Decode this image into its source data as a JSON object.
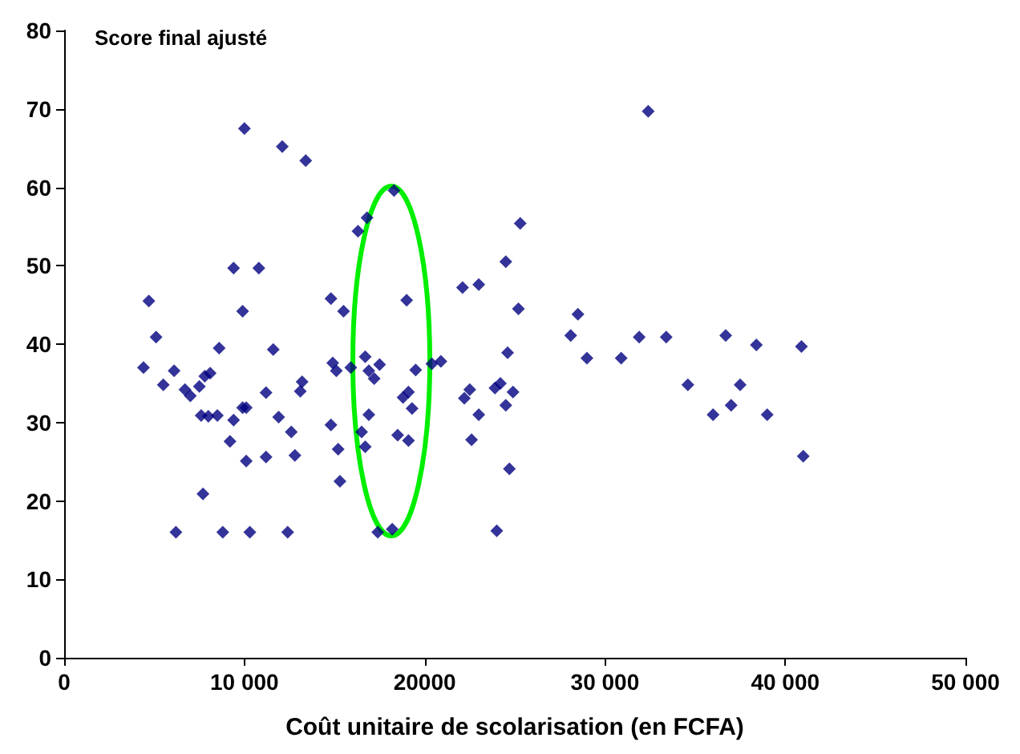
{
  "chart_data": {
    "type": "scatter",
    "xlabel": "Coût unitaire de scolarisation (en FCFA)",
    "ylabel": "Score final ajusté",
    "x": [
      10000,
      12100,
      13400,
      9400,
      10800,
      4700,
      9900,
      5100,
      8600,
      11600,
      4400,
      6100,
      5500,
      6700,
      7000,
      7800,
      8100,
      7500,
      13200,
      13100,
      11200,
      7600,
      8000,
      8500,
      9400,
      9900,
      10100,
      11900,
      12600,
      9200,
      10100,
      11200,
      12800,
      7700,
      6200,
      8800,
      10300,
      12400,
      18300,
      16800,
      16300,
      25300,
      24500,
      22100,
      23000,
      14800,
      15500,
      19000,
      25200,
      24600,
      16700,
      14900,
      15100,
      15900,
      17500,
      16900,
      17200,
      19500,
      20400,
      20900,
      19100,
      18800,
      19300,
      22500,
      22200,
      23900,
      24200,
      24900,
      24500,
      23000,
      16900,
      14800,
      16500,
      16700,
      15200,
      18500,
      19100,
      22600,
      15300,
      24700,
      17400,
      18200,
      24000,
      32400,
      28500,
      28100,
      29000,
      30900,
      31900,
      33400,
      36700,
      38400,
      40900,
      34600,
      37500,
      37000,
      36000,
      39000,
      41000
    ],
    "values": [
      67.5,
      65.2,
      63.4,
      49.7,
      49.7,
      45.5,
      44.2,
      40.9,
      39.5,
      39.3,
      37.0,
      36.6,
      34.8,
      34.2,
      33.4,
      35.9,
      36.3,
      34.6,
      35.2,
      34.0,
      33.8,
      30.9,
      30.8,
      30.9,
      30.3,
      31.9,
      31.9,
      30.7,
      28.8,
      27.6,
      25.1,
      25.6,
      25.8,
      20.9,
      16.0,
      16.0,
      16.0,
      16.0,
      59.6,
      56.1,
      54.4,
      55.4,
      50.5,
      47.2,
      47.6,
      45.8,
      44.2,
      45.6,
      44.5,
      38.9,
      38.4,
      37.6,
      36.6,
      37.0,
      37.4,
      36.6,
      35.6,
      36.7,
      37.5,
      37.8,
      33.9,
      33.2,
      31.8,
      34.2,
      33.1,
      34.4,
      35.0,
      33.9,
      32.2,
      31.0,
      31.0,
      29.7,
      28.8,
      26.9,
      26.6,
      28.4,
      27.7,
      27.8,
      22.5,
      24.1,
      16.0,
      16.4,
      16.2,
      69.7,
      43.8,
      41.1,
      38.2,
      38.2,
      40.9,
      40.9,
      41.1,
      39.9,
      39.7,
      34.8,
      34.8,
      32.2,
      31.0,
      31.0,
      25.7
    ],
    "color": "#000080",
    "marker": "diamond",
    "xlim": [
      0,
      50000
    ],
    "xticks": [
      {
        "value": 0,
        "label": "0"
      },
      {
        "value": 10000,
        "label": "10 000"
      },
      {
        "value": 20000,
        "label": "20000"
      },
      {
        "value": 30000,
        "label": "30 000"
      },
      {
        "value": 40000,
        "label": "40 000"
      },
      {
        "value": 50000,
        "label": "50 000"
      }
    ],
    "ylim": [
      0,
      80
    ],
    "yticks": [
      0,
      10,
      20,
      30,
      40,
      50,
      60,
      70,
      80
    ]
  }
}
